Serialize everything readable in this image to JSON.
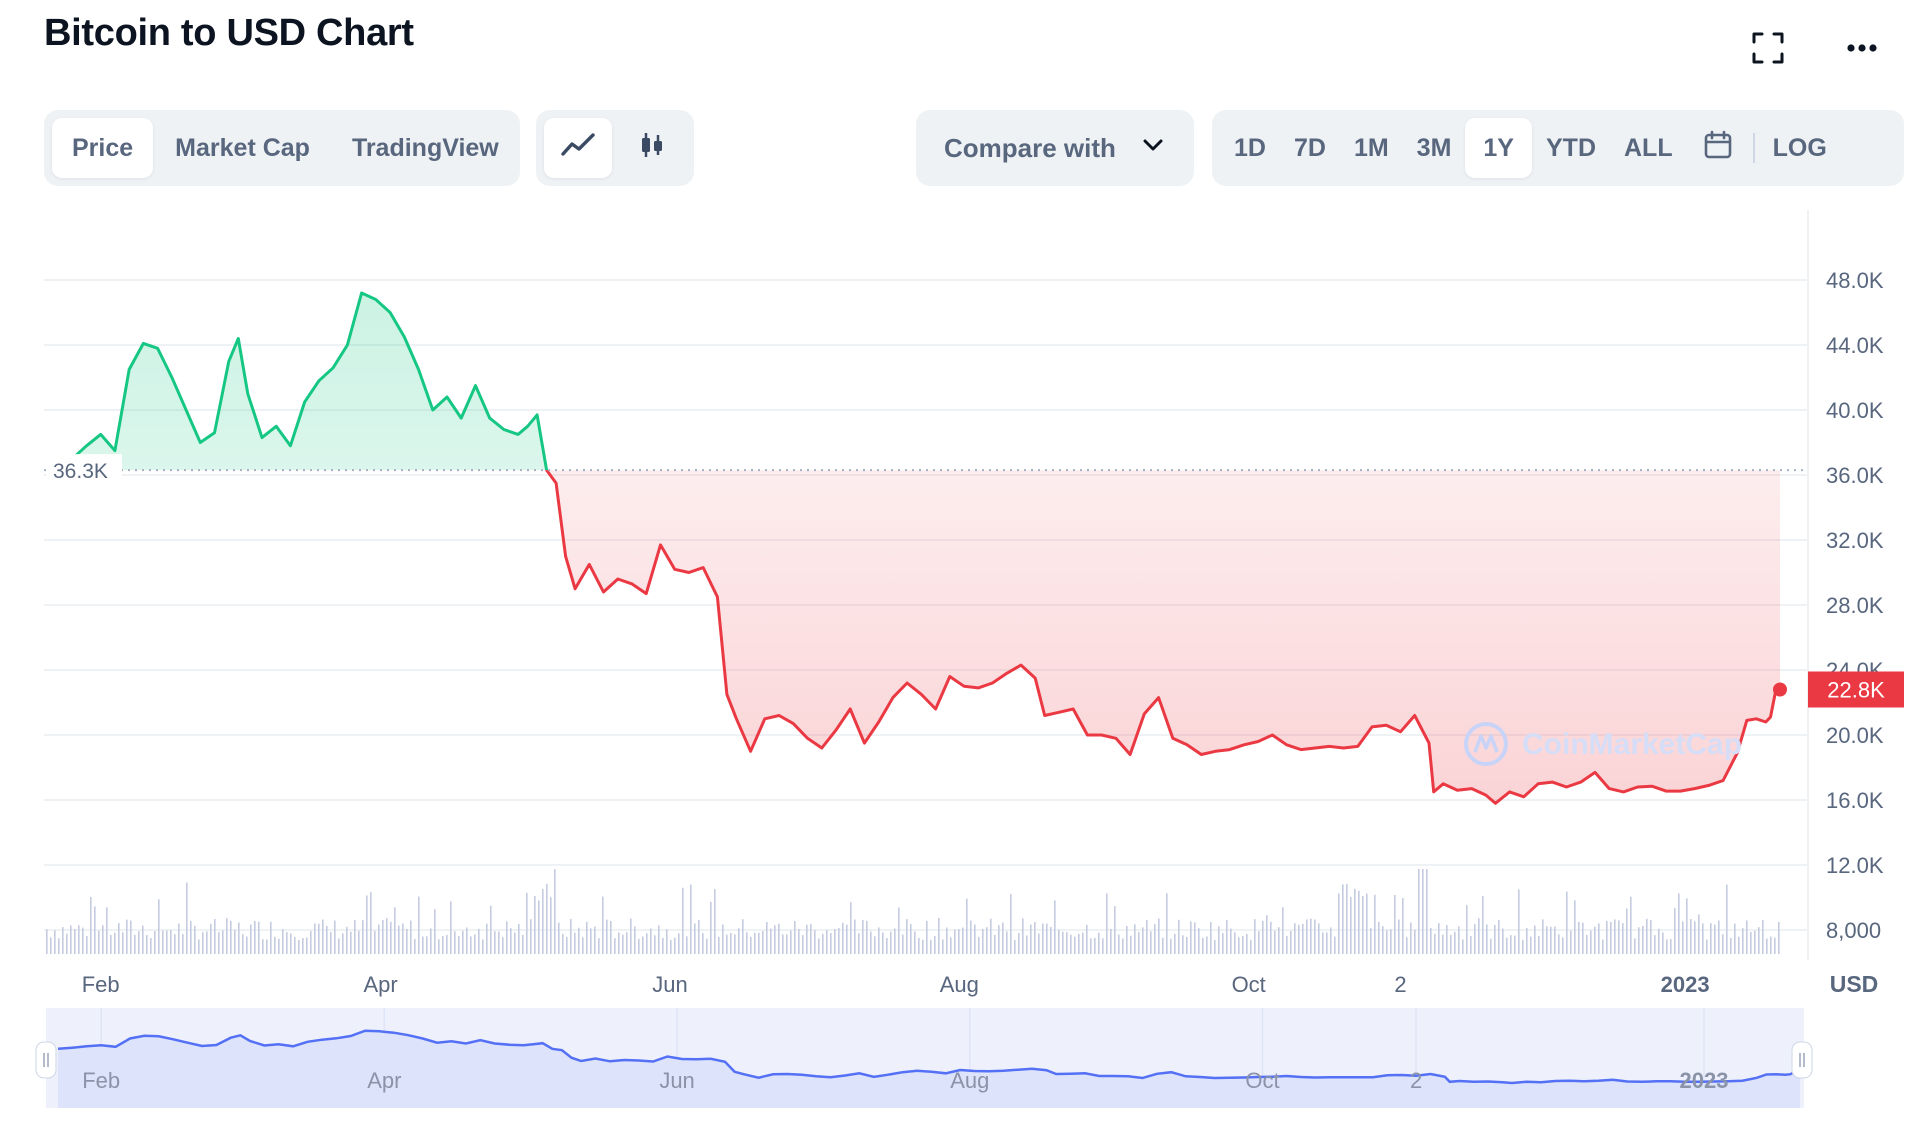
{
  "header": {
    "title": "Bitcoin to USD Chart",
    "fullscreen_icon": "fullscreen-icon",
    "more_icon": "more-horizontal-icon"
  },
  "tabs": [
    {
      "label": "Price",
      "active": true
    },
    {
      "label": "Market Cap",
      "active": false
    },
    {
      "label": "TradingView",
      "active": false
    }
  ],
  "chart_style": [
    {
      "icon": "line-chart-icon",
      "active": true
    },
    {
      "icon": "candlestick-icon",
      "active": false
    }
  ],
  "compare": {
    "label": "Compare with",
    "icon": "chevron-down-icon"
  },
  "ranges": [
    {
      "label": "1D",
      "active": false
    },
    {
      "label": "7D",
      "active": false
    },
    {
      "label": "1M",
      "active": false
    },
    {
      "label": "3M",
      "active": false
    },
    {
      "label": "1Y",
      "active": true
    },
    {
      "label": "YTD",
      "active": false
    },
    {
      "label": "ALL",
      "active": false
    }
  ],
  "calendar_icon": "calendar-icon",
  "log_label": "LOG",
  "watermark": "CoinMarketCap",
  "colors": {
    "up": "#16c784",
    "down": "#ea3943",
    "grid": "#eff2f5",
    "text": "#58667e",
    "navigator": "#5470f5"
  },
  "chart_data": {
    "type": "area",
    "title": "Bitcoin to USD Chart",
    "currency": "USD",
    "baseline": {
      "value": 36300,
      "label": "36.3K"
    },
    "current": {
      "value": 22800,
      "label": "22.8K"
    },
    "ylim": [
      6000,
      52000
    ],
    "y_ticks": [
      {
        "value": 48000,
        "label": "48.0K"
      },
      {
        "value": 44000,
        "label": "44.0K"
      },
      {
        "value": 40000,
        "label": "40.0K"
      },
      {
        "value": 36000,
        "label": "36.0K"
      },
      {
        "value": 32000,
        "label": "32.0K"
      },
      {
        "value": 28000,
        "label": "28.0K"
      },
      {
        "value": 24000,
        "label": "24.0K"
      },
      {
        "value": 20000,
        "label": "20.0K"
      },
      {
        "value": 16000,
        "label": "16.0K"
      },
      {
        "value": 12000,
        "label": "12.0K"
      },
      {
        "value": 8000,
        "label": "8,000"
      }
    ],
    "x_range": [
      "2022-01-23",
      "2023-01-21"
    ],
    "x_ticks": [
      {
        "date": "2022-02-01",
        "label": "Feb",
        "bold": false
      },
      {
        "date": "2022-04-01",
        "label": "Apr",
        "bold": false
      },
      {
        "date": "2022-06-01",
        "label": "Jun",
        "bold": false
      },
      {
        "date": "2022-08-01",
        "label": "Aug",
        "bold": false
      },
      {
        "date": "2022-10-01",
        "label": "Oct",
        "bold": false
      },
      {
        "date": "2022-11-02",
        "label": "2",
        "bold": false
      },
      {
        "date": "2023-01-01",
        "label": "2023",
        "bold": true
      }
    ],
    "series": [
      {
        "values": [
          [
            "2022-01-23",
            36300
          ],
          [
            "2022-01-26",
            37000
          ],
          [
            "2022-01-29",
            37800
          ],
          [
            "2022-02-01",
            38500
          ],
          [
            "2022-02-04",
            37500
          ],
          [
            "2022-02-07",
            42500
          ],
          [
            "2022-02-10",
            44100
          ],
          [
            "2022-02-13",
            43800
          ],
          [
            "2022-02-16",
            42000
          ],
          [
            "2022-02-19",
            40000
          ],
          [
            "2022-02-22",
            38000
          ],
          [
            "2022-02-25",
            38600
          ],
          [
            "2022-02-28",
            43000
          ],
          [
            "2022-03-02",
            44400
          ],
          [
            "2022-03-04",
            41000
          ],
          [
            "2022-03-07",
            38300
          ],
          [
            "2022-03-10",
            39000
          ],
          [
            "2022-03-13",
            37800
          ],
          [
            "2022-03-16",
            40500
          ],
          [
            "2022-03-19",
            41800
          ],
          [
            "2022-03-22",
            42600
          ],
          [
            "2022-03-25",
            44000
          ],
          [
            "2022-03-28",
            47200
          ],
          [
            "2022-03-31",
            46800
          ],
          [
            "2022-04-03",
            46000
          ],
          [
            "2022-04-06",
            44500
          ],
          [
            "2022-04-09",
            42500
          ],
          [
            "2022-04-12",
            40000
          ],
          [
            "2022-04-15",
            40800
          ],
          [
            "2022-04-18",
            39500
          ],
          [
            "2022-04-21",
            41500
          ],
          [
            "2022-04-24",
            39500
          ],
          [
            "2022-04-27",
            38800
          ],
          [
            "2022-04-30",
            38500
          ],
          [
            "2022-05-02",
            39000
          ],
          [
            "2022-05-04",
            39700
          ],
          [
            "2022-05-06",
            36300
          ],
          [
            "2022-05-08",
            35500
          ],
          [
            "2022-05-10",
            31000
          ],
          [
            "2022-05-12",
            29000
          ],
          [
            "2022-05-15",
            30500
          ],
          [
            "2022-05-18",
            28800
          ],
          [
            "2022-05-21",
            29600
          ],
          [
            "2022-05-24",
            29300
          ],
          [
            "2022-05-27",
            28700
          ],
          [
            "2022-05-30",
            31700
          ],
          [
            "2022-06-02",
            30200
          ],
          [
            "2022-06-05",
            30000
          ],
          [
            "2022-06-08",
            30300
          ],
          [
            "2022-06-11",
            28500
          ],
          [
            "2022-06-13",
            22500
          ],
          [
            "2022-06-15",
            21000
          ],
          [
            "2022-06-18",
            19000
          ],
          [
            "2022-06-21",
            21000
          ],
          [
            "2022-06-24",
            21200
          ],
          [
            "2022-06-27",
            20700
          ],
          [
            "2022-06-30",
            19800
          ],
          [
            "2022-07-03",
            19200
          ],
          [
            "2022-07-06",
            20300
          ],
          [
            "2022-07-09",
            21600
          ],
          [
            "2022-07-12",
            19500
          ],
          [
            "2022-07-15",
            20800
          ],
          [
            "2022-07-18",
            22300
          ],
          [
            "2022-07-21",
            23200
          ],
          [
            "2022-07-24",
            22500
          ],
          [
            "2022-07-27",
            21600
          ],
          [
            "2022-07-30",
            23600
          ],
          [
            "2022-08-02",
            23000
          ],
          [
            "2022-08-05",
            22900
          ],
          [
            "2022-08-08",
            23200
          ],
          [
            "2022-08-11",
            23800
          ],
          [
            "2022-08-14",
            24300
          ],
          [
            "2022-08-17",
            23500
          ],
          [
            "2022-08-19",
            21200
          ],
          [
            "2022-08-22",
            21400
          ],
          [
            "2022-08-25",
            21600
          ],
          [
            "2022-08-28",
            20000
          ],
          [
            "2022-08-31",
            20000
          ],
          [
            "2022-09-03",
            19800
          ],
          [
            "2022-09-06",
            18800
          ],
          [
            "2022-09-09",
            21300
          ],
          [
            "2022-09-12",
            22300
          ],
          [
            "2022-09-15",
            19800
          ],
          [
            "2022-09-18",
            19400
          ],
          [
            "2022-09-21",
            18800
          ],
          [
            "2022-09-24",
            19000
          ],
          [
            "2022-09-27",
            19100
          ],
          [
            "2022-09-30",
            19400
          ],
          [
            "2022-10-03",
            19600
          ],
          [
            "2022-10-06",
            20000
          ],
          [
            "2022-10-09",
            19400
          ],
          [
            "2022-10-12",
            19100
          ],
          [
            "2022-10-15",
            19200
          ],
          [
            "2022-10-18",
            19300
          ],
          [
            "2022-10-21",
            19200
          ],
          [
            "2022-10-24",
            19300
          ],
          [
            "2022-10-27",
            20500
          ],
          [
            "2022-10-30",
            20600
          ],
          [
            "2022-11-02",
            20200
          ],
          [
            "2022-11-05",
            21200
          ],
          [
            "2022-11-08",
            19500
          ],
          [
            "2022-11-09",
            16500
          ],
          [
            "2022-11-11",
            17000
          ],
          [
            "2022-11-14",
            16600
          ],
          [
            "2022-11-17",
            16700
          ],
          [
            "2022-11-20",
            16300
          ],
          [
            "2022-11-22",
            15800
          ],
          [
            "2022-11-25",
            16500
          ],
          [
            "2022-11-28",
            16200
          ],
          [
            "2022-12-01",
            17000
          ],
          [
            "2022-12-04",
            17100
          ],
          [
            "2022-12-07",
            16800
          ],
          [
            "2022-12-10",
            17100
          ],
          [
            "2022-12-13",
            17700
          ],
          [
            "2022-12-16",
            16700
          ],
          [
            "2022-12-19",
            16500
          ],
          [
            "2022-12-22",
            16800
          ],
          [
            "2022-12-25",
            16850
          ],
          [
            "2022-12-28",
            16550
          ],
          [
            "2022-12-31",
            16550
          ],
          [
            "2023-01-03",
            16700
          ],
          [
            "2023-01-06",
            16900
          ],
          [
            "2023-01-09",
            17200
          ],
          [
            "2023-01-12",
            18900
          ],
          [
            "2023-01-14",
            20900
          ],
          [
            "2023-01-16",
            21000
          ],
          [
            "2023-01-18",
            20800
          ],
          [
            "2023-01-19",
            21100
          ],
          [
            "2023-01-20",
            22600
          ],
          [
            "2023-01-21",
            22800
          ]
        ]
      }
    ]
  }
}
